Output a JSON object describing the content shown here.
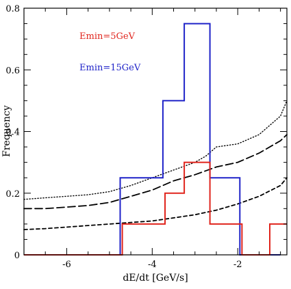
{
  "chart_data": {
    "type": "line",
    "title": "",
    "xlabel": "dE/dt [GeV/s]",
    "ylabel": "Frequency",
    "xlim": [
      -7.0,
      -0.85
    ],
    "ylim": [
      0,
      0.8
    ],
    "x_ticks": [
      -6,
      -4,
      -2
    ],
    "x_tick_labels": [
      "-6",
      "-4",
      "-2"
    ],
    "x_minor_step": 0.5,
    "y_ticks": [
      0,
      0.2,
      0.4,
      0.6,
      0.8
    ],
    "y_tick_labels": [
      "0",
      "0.2",
      "0.4",
      "0.6",
      "0.8"
    ],
    "y_minor_step": 0.05,
    "grid": false,
    "legend_position": "top-left",
    "legend": [
      {
        "label": "Emin=5GeV",
        "color": "#e0241c"
      },
      {
        "label": "Emin=15GeV",
        "color": "#1e22c8"
      }
    ],
    "histograms": [
      {
        "name": "Emin=15GeV",
        "color": "#1e22c8",
        "edges": [
          -7.0,
          -4.75,
          -3.75,
          -3.25,
          -2.65,
          -1.95,
          -1.0
        ],
        "values": [
          0,
          0.25,
          0.5,
          0.75,
          0.25,
          0
        ]
      },
      {
        "name": "Emin=5GeV",
        "color": "#e0241c",
        "edges": [
          -7.0,
          -4.7,
          -3.7,
          -3.25,
          -2.65,
          -1.9,
          -1.25,
          -0.85
        ],
        "values": [
          0,
          0.1,
          0.2,
          0.3,
          0.1,
          0,
          0.1
        ]
      }
    ],
    "series": [
      {
        "style": "dotted",
        "color": "#000000",
        "x": [
          -7.0,
          -6.5,
          -6.0,
          -5.5,
          -5.0,
          -4.5,
          -4.0,
          -3.5,
          -3.0,
          -2.75,
          -2.5,
          -2.0,
          -1.5,
          -1.0,
          -0.85
        ],
        "y": [
          0.18,
          0.185,
          0.19,
          0.195,
          0.205,
          0.225,
          0.25,
          0.275,
          0.3,
          0.32,
          0.35,
          0.36,
          0.39,
          0.45,
          0.5
        ]
      },
      {
        "style": "long-dashed",
        "color": "#000000",
        "x": [
          -7.0,
          -6.5,
          -6.0,
          -5.5,
          -5.0,
          -4.5,
          -4.0,
          -3.5,
          -3.0,
          -2.5,
          -2.0,
          -1.5,
          -1.0,
          -0.85
        ],
        "y": [
          0.15,
          0.15,
          0.155,
          0.16,
          0.17,
          0.19,
          0.21,
          0.24,
          0.26,
          0.285,
          0.3,
          0.33,
          0.37,
          0.39
        ]
      },
      {
        "style": "short-dashed",
        "color": "#000000",
        "x": [
          -7.0,
          -6.5,
          -6.0,
          -5.5,
          -5.0,
          -4.5,
          -4.0,
          -3.5,
          -3.0,
          -2.5,
          -2.0,
          -1.5,
          -1.0,
          -0.85
        ],
        "y": [
          0.082,
          0.085,
          0.09,
          0.095,
          0.1,
          0.105,
          0.11,
          0.12,
          0.13,
          0.145,
          0.165,
          0.19,
          0.225,
          0.25
        ]
      }
    ]
  }
}
